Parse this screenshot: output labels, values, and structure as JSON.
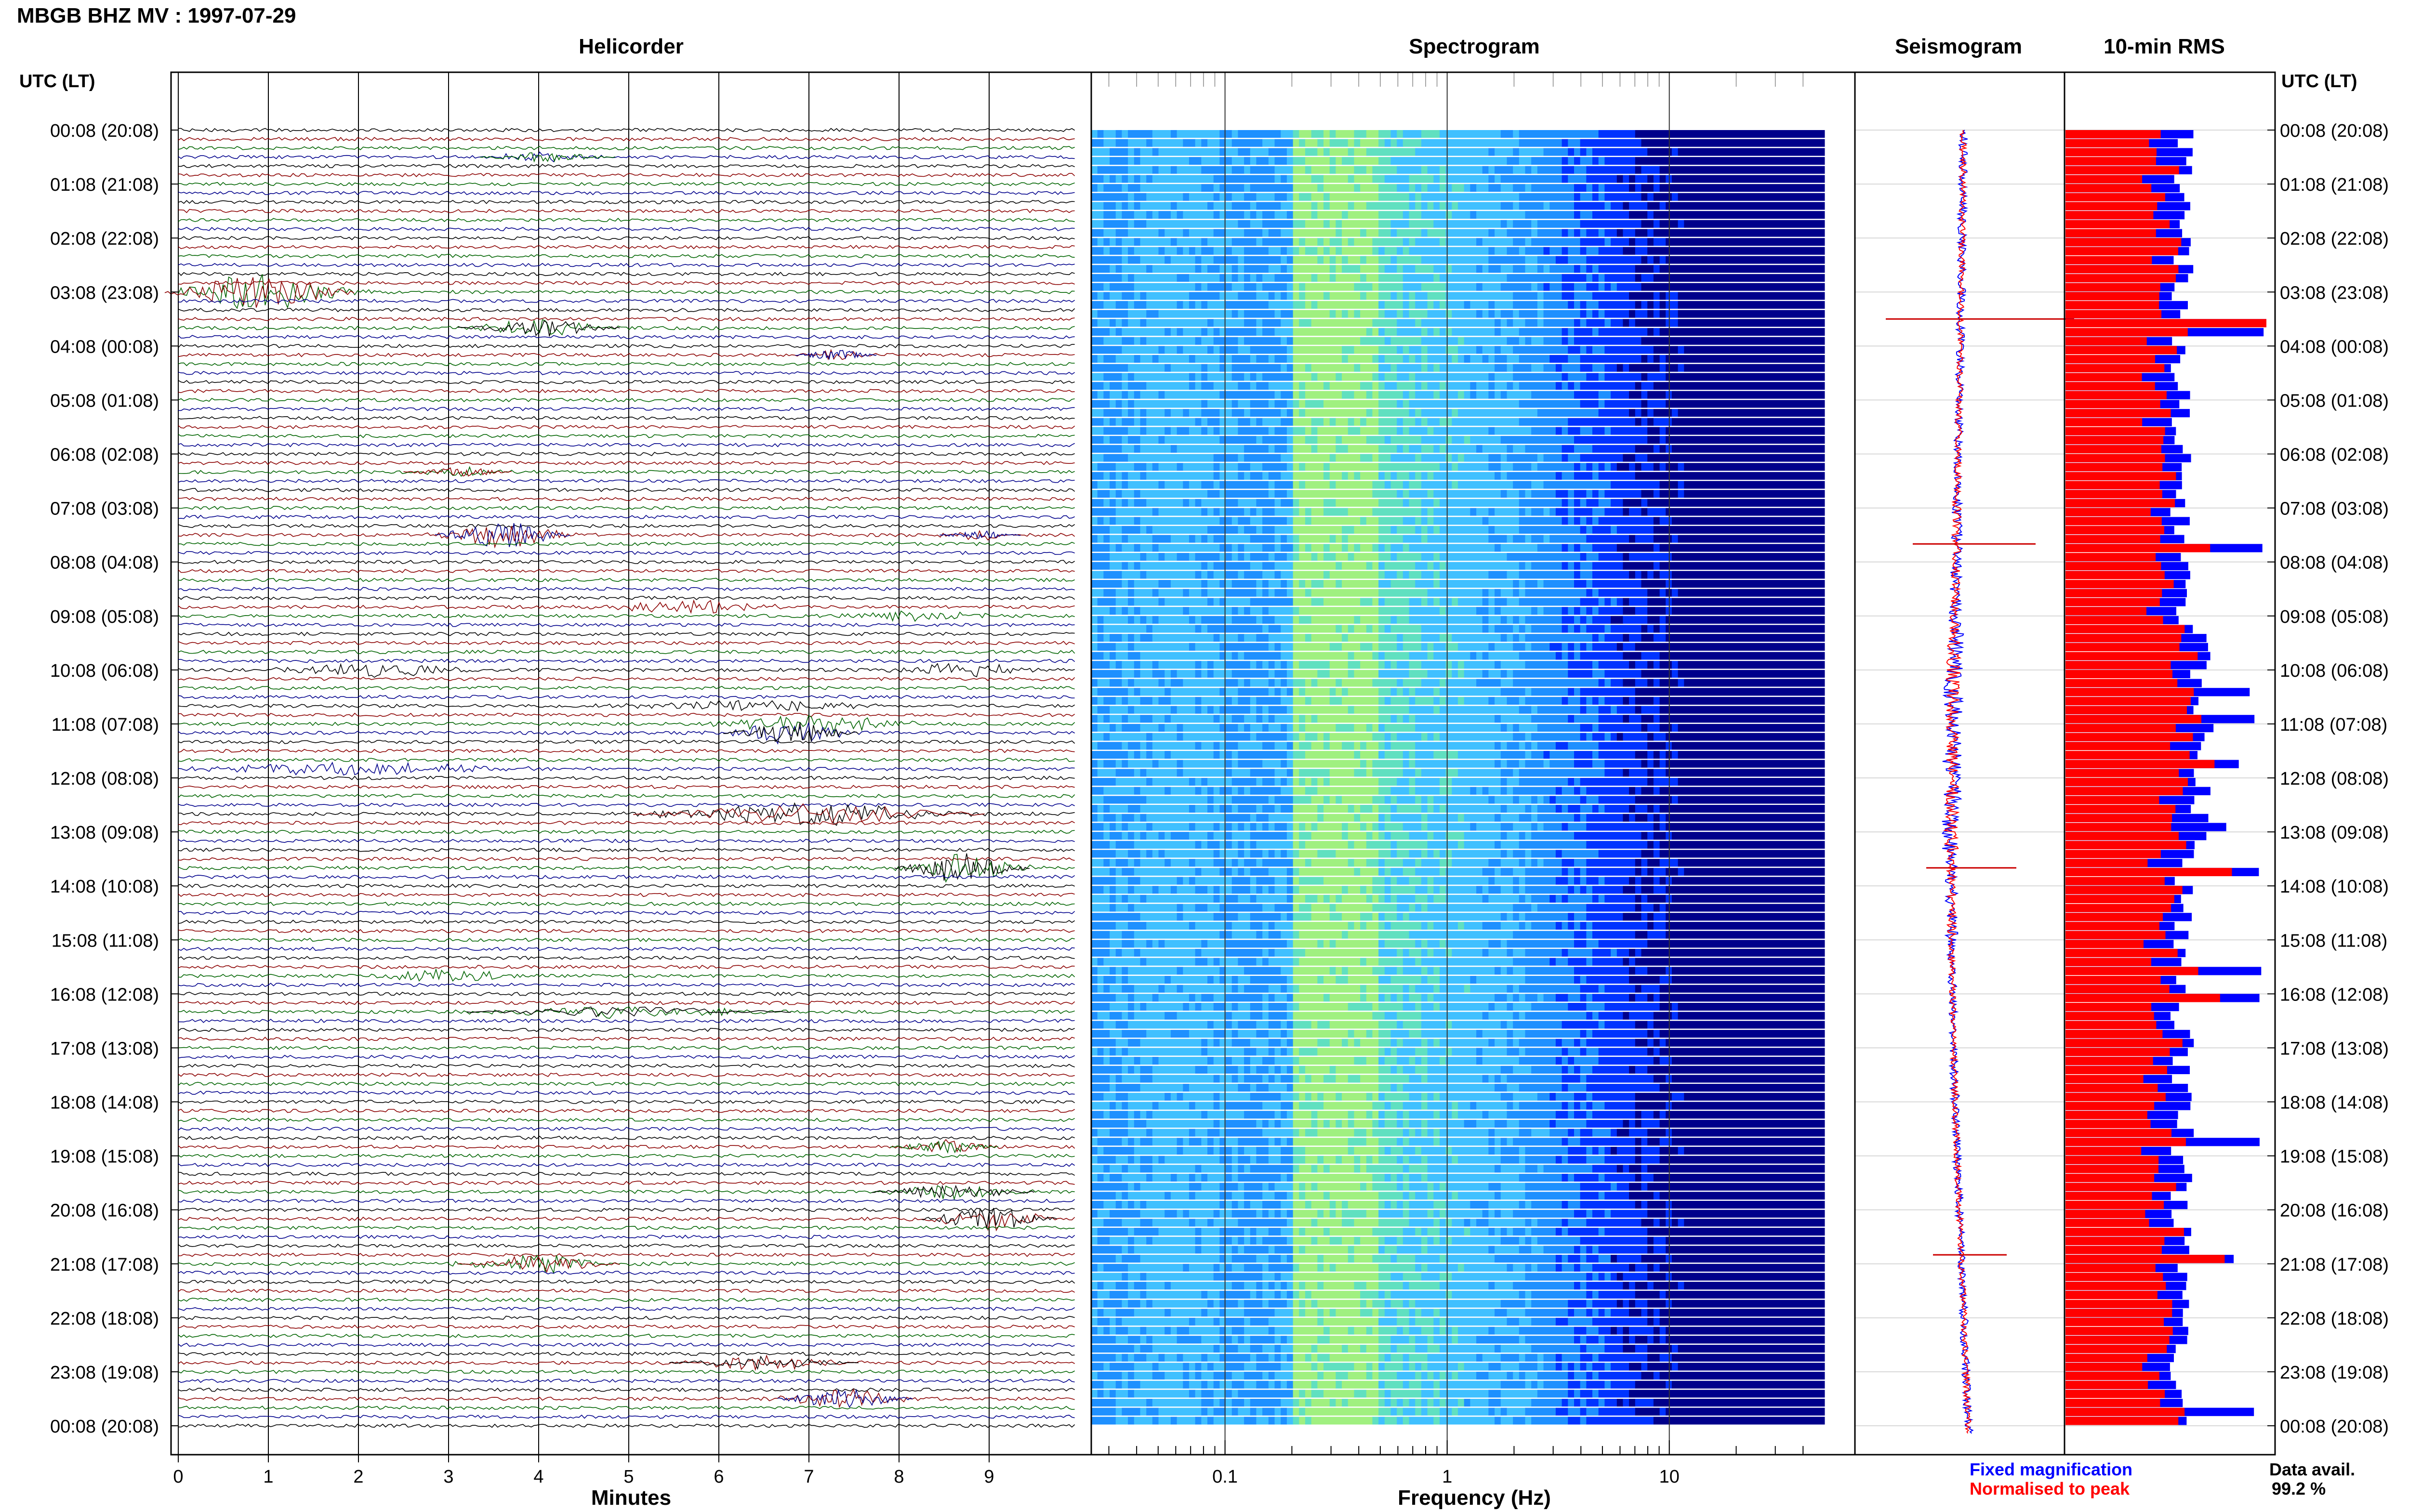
{
  "title": "MBGB BHZ MV : 1997-07-29",
  "panels": {
    "helicorder": "Helicorder",
    "spectrogram": "Spectrogram",
    "seismogram": "Seismogram",
    "rms": "10-min RMS"
  },
  "time_axis_label": "UTC (LT)",
  "legend": {
    "fixed": "Fixed magnification",
    "normalised": "Normalised to peak",
    "fixed_color": "#0000ff",
    "normalised_color": "#ff0000"
  },
  "data_availability": {
    "label": "Data avail.",
    "value": "99.2 %"
  },
  "chart_data": [
    {
      "type": "line",
      "name": "helicorder",
      "title": "Helicorder",
      "xlabel": "Minutes",
      "xlim": [
        0,
        10
      ],
      "x_ticks": [
        0,
        1,
        2,
        3,
        4,
        5,
        6,
        7,
        8,
        9
      ],
      "rows_per_hour": 6,
      "rows": 145,
      "trace_colors": [
        "#000000",
        "#8b0000",
        "#006400",
        "#00008b"
      ],
      "time_labels": [
        "00:08 (20:08)",
        "01:08 (21:08)",
        "02:08 (22:08)",
        "03:08 (23:08)",
        "04:08 (00:08)",
        "05:08 (01:08)",
        "06:08 (02:08)",
        "07:08 (03:08)",
        "08:08 (04:08)",
        "09:08 (05:08)",
        "10:08 (06:08)",
        "11:08 (07:08)",
        "12:08 (08:08)",
        "13:08 (09:08)",
        "14:08 (10:08)",
        "15:08 (11:08)",
        "16:08 (12:08)",
        "17:08 (13:08)",
        "18:08 (14:08)",
        "19:08 (15:08)",
        "20:08 (16:08)",
        "21:08 (17:08)",
        "22:08 (18:08)",
        "23:08 (19:08)",
        "00:08 (20:08)"
      ],
      "events": [
        {
          "row": 18,
          "minute": 0.9,
          "width": 0.7,
          "amp": 3.0,
          "color": "#8b0000"
        },
        {
          "row": 3,
          "minute": 4.1,
          "width": 0.5,
          "amp": 0.8,
          "color": "#006400"
        },
        {
          "row": 22,
          "minute": 4.0,
          "width": 0.6,
          "amp": 1.4,
          "color": "#000000"
        },
        {
          "row": 25,
          "minute": 7.3,
          "width": 0.3,
          "amp": 0.8,
          "color": "#00008b"
        },
        {
          "row": 38,
          "minute": 3.1,
          "width": 0.4,
          "amp": 0.8,
          "color": "#8b0000"
        },
        {
          "row": 45,
          "minute": 3.6,
          "width": 0.5,
          "amp": 2.2,
          "color": "#00008b"
        },
        {
          "row": 45,
          "minute": 8.9,
          "width": 0.3,
          "amp": 0.7,
          "color": "#00008b"
        },
        {
          "row": 53,
          "minute": 5.6,
          "width": 0.8,
          "amp": 1.0,
          "color": "#8b0000"
        },
        {
          "row": 54,
          "minute": 8.2,
          "width": 0.6,
          "amp": 0.8,
          "color": "#006400"
        },
        {
          "row": 60,
          "minute": 2.2,
          "width": 0.8,
          "amp": 1.0,
          "color": "#000000"
        },
        {
          "row": 60,
          "minute": 8.7,
          "width": 0.6,
          "amp": 1.0,
          "color": "#000000"
        },
        {
          "row": 64,
          "minute": 6.3,
          "width": 1.0,
          "amp": 1.0,
          "color": "#000000"
        },
        {
          "row": 66,
          "minute": 7.0,
          "width": 0.8,
          "amp": 1.4,
          "color": "#006400"
        },
        {
          "row": 67,
          "minute": 6.8,
          "width": 0.5,
          "amp": 1.8,
          "color": "#000000"
        },
        {
          "row": 71,
          "minute": 2.0,
          "width": 1.5,
          "amp": 1.0,
          "color": "#00008b"
        },
        {
          "row": 76,
          "minute": 7.0,
          "width": 1.3,
          "amp": 1.8,
          "color": "#8b0000"
        },
        {
          "row": 82,
          "minute": 8.7,
          "width": 0.5,
          "amp": 2.4,
          "color": "#000000"
        },
        {
          "row": 94,
          "minute": 3.0,
          "width": 0.6,
          "amp": 1.0,
          "color": "#006400"
        },
        {
          "row": 98,
          "minute": 5.0,
          "width": 1.2,
          "amp": 0.9,
          "color": "#000000"
        },
        {
          "row": 113,
          "minute": 8.5,
          "width": 0.4,
          "amp": 1.0,
          "color": "#006400"
        },
        {
          "row": 118,
          "minute": 8.6,
          "width": 0.6,
          "amp": 1.2,
          "color": "#000000"
        },
        {
          "row": 121,
          "minute": 9.0,
          "width": 0.5,
          "amp": 1.9,
          "color": "#000000"
        },
        {
          "row": 126,
          "minute": 4.0,
          "width": 0.6,
          "amp": 1.4,
          "color": "#8b0000"
        },
        {
          "row": 137,
          "minute": 6.5,
          "width": 0.7,
          "amp": 1.0,
          "color": "#000000"
        },
        {
          "row": 141,
          "minute": 7.4,
          "width": 0.5,
          "amp": 1.6,
          "color": "#00008b"
        }
      ]
    },
    {
      "type": "heatmap",
      "name": "spectrogram",
      "title": "Spectrogram",
      "xlabel": "Frequency (Hz)",
      "x_scale": "log",
      "xlim": [
        0.025,
        50
      ],
      "x_tick_labels": [
        "0.1",
        "1",
        "10"
      ],
      "rows": 145,
      "colormap": [
        "#00008b",
        "#0033ff",
        "#1e90ff",
        "#40c0ff",
        "#60e0c0",
        "#a0f080",
        "#f0f040"
      ],
      "yellow_band_hz": [
        0.2,
        0.5
      ],
      "falloff_hz": [
        2,
        8
      ]
    },
    {
      "type": "line",
      "name": "seismogram",
      "title": "Seismogram",
      "series": [
        {
          "name": "Fixed magnification",
          "color": "#0000ff"
        },
        {
          "name": "Normalised to peak",
          "color": "#ff0000"
        }
      ],
      "rows": 145
    },
    {
      "type": "bar",
      "name": "rms",
      "title": "10-min RMS",
      "series": [
        {
          "name": "Fixed magnification",
          "color": "#0000ff"
        },
        {
          "name": "Normalised to peak",
          "color": "#ff0000"
        }
      ],
      "peak_rows": [
        21,
        22,
        46,
        62,
        65,
        70,
        77,
        82,
        93,
        96,
        112,
        125,
        142
      ],
      "rows": 145
    }
  ]
}
